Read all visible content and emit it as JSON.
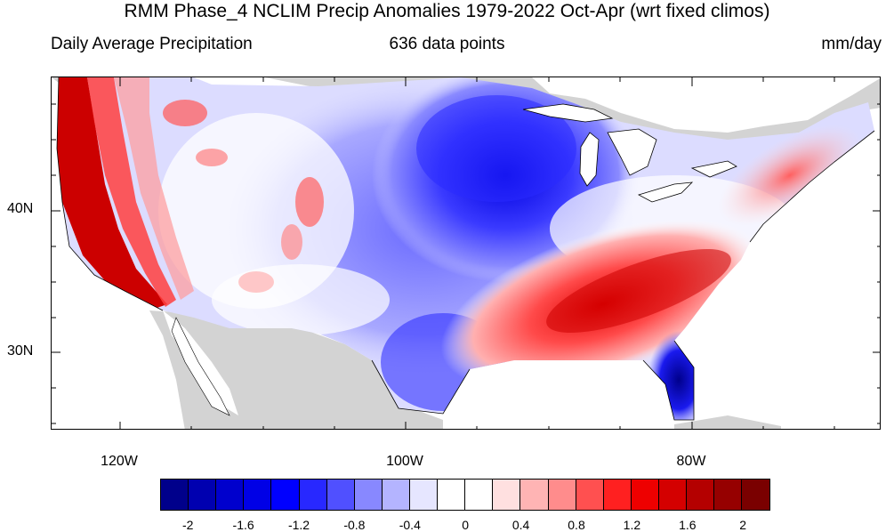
{
  "title": "RMM Phase_4 NCLIM Precip Anomalies 1979-2022 Oct-Apr (wrt fixed climos)",
  "subtitle_left": "Daily Average Precipitation",
  "subtitle_center": "636 data points",
  "subtitle_right": "mm/day",
  "lat_labels": [
    "40N",
    "30N"
  ],
  "lon_labels": [
    "120W",
    "100W",
    "80W"
  ],
  "colorbar": {
    "colors": [
      "#00008b",
      "#0000b0",
      "#0000cd",
      "#0000e6",
      "#0000ff",
      "#2828ff",
      "#5050ff",
      "#8888ff",
      "#b4b4ff",
      "#e6e6ff",
      "#ffffff",
      "#ffffff",
      "#ffe0e0",
      "#ffb4b4",
      "#ff8c8c",
      "#ff5050",
      "#ff2020",
      "#ee0000",
      "#d40000",
      "#b40000",
      "#960000",
      "#7a0000"
    ],
    "labels": [
      "-2",
      "-1.6",
      "-1.2",
      "-0.8",
      "-0.4",
      "0",
      "0.4",
      "0.8",
      "1.2",
      "1.6",
      "2"
    ]
  },
  "colors": {
    "land_masked": "#d3d3d3",
    "ocean": "#ffffff",
    "wet": "#ff0000",
    "dry": "#0000ff"
  }
}
